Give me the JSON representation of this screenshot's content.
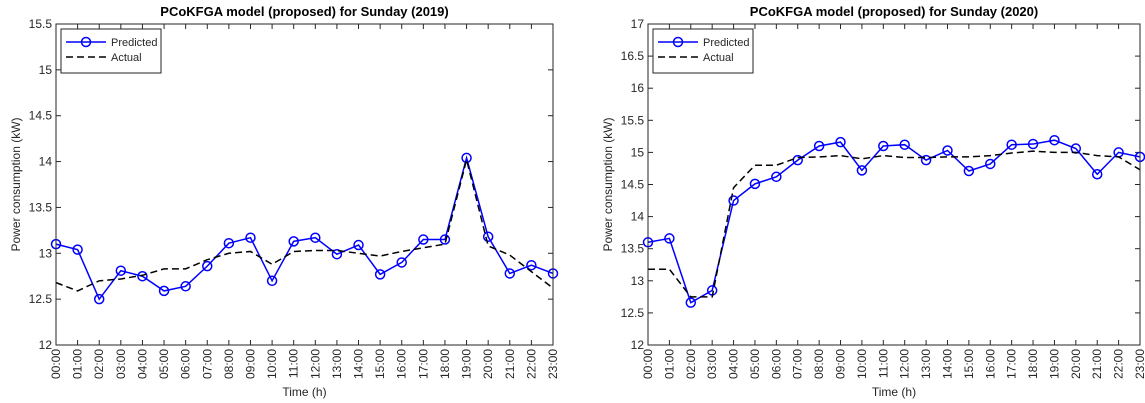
{
  "chart_data": [
    {
      "type": "line",
      "title": "PCoKFGA model (proposed) for Sunday (2019)",
      "xlabel": "Time (h)",
      "ylabel": "Power consumption (kW)",
      "categories": [
        "00:00",
        "01:00",
        "02:00",
        "03:00",
        "04:00",
        "05:00",
        "06:00",
        "07:00",
        "08:00",
        "09:00",
        "10:00",
        "11:00",
        "12:00",
        "13:00",
        "14:00",
        "15:00",
        "16:00",
        "17:00",
        "18:00",
        "19:00",
        "20:00",
        "21:00",
        "22:00",
        "23:00"
      ],
      "series": [
        {
          "name": "Predicted",
          "color": "#0000ff",
          "marker": "o",
          "linestyle": "-",
          "values": [
            13.1,
            13.04,
            12.5,
            12.81,
            12.75,
            12.59,
            12.64,
            12.86,
            13.11,
            13.17,
            12.7,
            13.13,
            13.17,
            12.99,
            13.09,
            12.77,
            12.9,
            13.15,
            13.15,
            14.04,
            13.18,
            12.78,
            12.87,
            12.78
          ]
        },
        {
          "name": "Actual",
          "color": "#000000",
          "marker": "none",
          "linestyle": "--",
          "values": [
            12.68,
            12.59,
            12.7,
            12.72,
            12.76,
            12.83,
            12.83,
            12.93,
            13.0,
            13.02,
            12.88,
            13.02,
            13.03,
            13.03,
            13.0,
            12.97,
            13.02,
            13.06,
            13.1,
            14.02,
            13.08,
            12.98,
            12.8,
            12.62
          ]
        }
      ],
      "ylim": [
        12,
        15.5
      ],
      "yticks": [
        12,
        12.5,
        13,
        13.5,
        14,
        14.5,
        15,
        15.5
      ],
      "legend": "upper left"
    },
    {
      "type": "line",
      "title": "PCoKFGA model (proposed) for Sunday (2020)",
      "xlabel": "Time (h)",
      "ylabel": "Power consumption (kW)",
      "categories": [
        "00:00",
        "01:00",
        "02:00",
        "03:00",
        "04:00",
        "05:00",
        "06:00",
        "07:00",
        "08:00",
        "09:00",
        "10:00",
        "11:00",
        "12:00",
        "13:00",
        "14:00",
        "15:00",
        "16:00",
        "17:00",
        "18:00",
        "19:00",
        "20:00",
        "21:00",
        "22:00",
        "23:00"
      ],
      "series": [
        {
          "name": "Predicted",
          "color": "#0000ff",
          "marker": "o",
          "linestyle": "-",
          "values": [
            13.6,
            13.66,
            12.66,
            12.85,
            14.25,
            14.51,
            14.62,
            14.88,
            15.1,
            15.16,
            14.72,
            15.1,
            15.12,
            14.88,
            15.03,
            14.71,
            14.82,
            15.12,
            15.13,
            15.19,
            15.06,
            14.66,
            15.0,
            14.93
          ]
        },
        {
          "name": "Actual",
          "color": "#000000",
          "marker": "none",
          "linestyle": "--",
          "values": [
            13.18,
            13.18,
            12.75,
            12.75,
            14.45,
            14.8,
            14.8,
            14.92,
            14.93,
            14.95,
            14.9,
            14.95,
            14.92,
            14.92,
            14.93,
            14.93,
            14.95,
            14.99,
            15.02,
            15.0,
            15.0,
            14.95,
            14.93,
            14.73
          ]
        }
      ],
      "ylim": [
        12,
        17
      ],
      "yticks": [
        12,
        12.5,
        13,
        13.5,
        14,
        14.5,
        15,
        15.5,
        16,
        16.5,
        17
      ],
      "legend": "upper left"
    }
  ]
}
